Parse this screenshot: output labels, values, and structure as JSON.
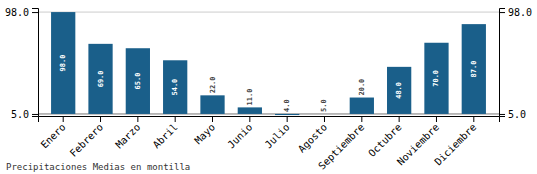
{
  "chart_data": {
    "type": "bar",
    "subtitle": "Precipitaciones Medias en montilla",
    "categories": [
      "Enero",
      "Febrero",
      "Marzo",
      "Abril",
      "Mayo",
      "Junio",
      "Julio",
      "Agosto",
      "Septiembre",
      "Octubre",
      "Noviembre",
      "Diciembre"
    ],
    "values": [
      98.0,
      69.0,
      65.0,
      54.0,
      22.0,
      11.0,
      4.0,
      5.0,
      20.0,
      48.0,
      70.0,
      87.0
    ],
    "value_labels": [
      "98.0",
      "69.0",
      "65.0",
      "54.0",
      "22.0",
      "11.0",
      "4.0",
      "5.0",
      "20.0",
      "48.0",
      "70.0",
      "87.0"
    ],
    "data_labels": true,
    "color": "#1a5f8a",
    "ylim": [
      3.14,
      101.72
    ],
    "yticks": [
      {
        "value": 5.0,
        "label": "5.0"
      },
      {
        "value": 98.0,
        "label": "98.0"
      }
    ],
    "y2lim": [
      3.14,
      101.72
    ],
    "y2ticks": [
      {
        "value": 5.0,
        "label": "5.0"
      },
      {
        "value": 98.0,
        "label": "98.0"
      }
    ],
    "grid": true
  }
}
